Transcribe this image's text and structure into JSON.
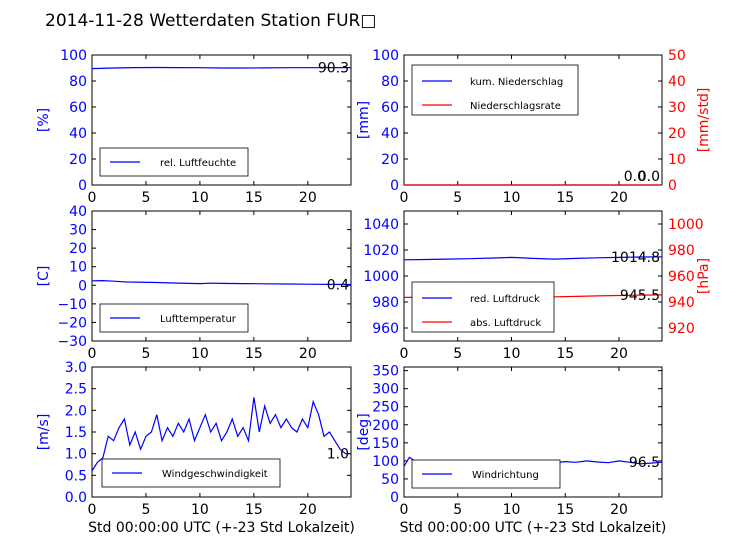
{
  "title": "2014-11-28 Wetterdaten Station FUR□",
  "colors": {
    "blue": "#0000ff",
    "red": "#ff0000",
    "black": "#000000"
  },
  "chart_data": [
    {
      "id": "humidity",
      "type": "line",
      "xlim": [
        0,
        24
      ],
      "xticks": [
        "0",
        "5",
        "10",
        "15",
        "20"
      ],
      "ylim": [
        0,
        100
      ],
      "yticks": [
        "0",
        "20",
        "40",
        "60",
        "80",
        "100"
      ],
      "ylabel": "[%]",
      "xlabel": "",
      "legend": [
        "rel. Luftfeuchte"
      ],
      "legend_position": "lower-left",
      "last_value_label": "90.3",
      "series": [
        {
          "name": "rel. Luftfeuchte",
          "color": "#0000ff",
          "x": [
            0,
            2,
            4,
            6,
            8,
            10,
            12,
            14,
            16,
            18,
            20,
            22,
            24
          ],
          "y": [
            89.5,
            90.0,
            90.3,
            90.4,
            90.3,
            90.2,
            90.0,
            90.0,
            90.1,
            90.2,
            90.2,
            90.3,
            90.3
          ]
        }
      ]
    },
    {
      "id": "precipitation",
      "type": "line",
      "xlim": [
        0,
        24
      ],
      "xticks": [
        "0",
        "5",
        "10",
        "15",
        "20"
      ],
      "ylim": [
        0,
        100
      ],
      "yticks": [
        "0",
        "20",
        "40",
        "60",
        "80",
        "100"
      ],
      "ylabel": "[mm]",
      "y2lim": [
        0,
        50
      ],
      "y2ticks": [
        "0",
        "10",
        "20",
        "30",
        "40",
        "50"
      ],
      "y2label": "[mm/std]",
      "xlabel": "",
      "legend": [
        "kum. Niederschlag",
        "Niederschlagsrate"
      ],
      "legend_position": "upper-left",
      "last_value_label": "0.0",
      "last_value_label_2": "0.0",
      "series": [
        {
          "name": "kum. Niederschlag",
          "color": "#0000ff",
          "x": [
            0,
            24
          ],
          "y": [
            0,
            0
          ]
        },
        {
          "name": "Niederschlagsrate",
          "color": "#ff0000",
          "x": [
            0,
            24
          ],
          "y": [
            0,
            0
          ]
        }
      ]
    },
    {
      "id": "temperature",
      "type": "line",
      "xlim": [
        0,
        24
      ],
      "xticks": [
        "0",
        "5",
        "10",
        "15",
        "20"
      ],
      "ylim": [
        -30,
        40
      ],
      "yticks": [
        "−30",
        "−20",
        "−10",
        "0",
        "10",
        "20",
        "30",
        "40"
      ],
      "ylabel": "[C]",
      "xlabel": "",
      "legend": [
        "Lufttemperatur"
      ],
      "legend_position": "lower-left",
      "last_value_label": "0.4",
      "series": [
        {
          "name": "Lufttemperatur",
          "color": "#0000ff",
          "x": [
            0,
            1,
            2,
            3,
            4,
            6,
            8,
            10,
            11,
            12,
            14,
            16,
            18,
            20,
            22,
            24
          ],
          "y": [
            2.4,
            2.5,
            2.2,
            1.8,
            1.7,
            1.5,
            1.2,
            0.9,
            1.1,
            1.0,
            0.9,
            0.8,
            0.7,
            0.6,
            0.5,
            0.4
          ]
        }
      ]
    },
    {
      "id": "pressure",
      "type": "line",
      "xlim": [
        0,
        24
      ],
      "xticks": [
        "0",
        "5",
        "10",
        "15",
        "20"
      ],
      "ylim": [
        950,
        1050
      ],
      "yticks": [
        "960",
        "980",
        "1000",
        "1020",
        "1040"
      ],
      "ylabel": "",
      "y2lim": [
        910,
        1010
      ],
      "y2ticks": [
        "920",
        "940",
        "960",
        "980",
        "1000"
      ],
      "y2label": "[hPa]",
      "xlabel": "",
      "legend": [
        "red. Luftdruck",
        "abs. Luftdruck"
      ],
      "legend_position": "lower-left",
      "last_value_label": "1014.8",
      "last_value_label_2": "945.5",
      "series": [
        {
          "name": "red. Luftdruck",
          "color": "#0000ff",
          "axis": "left",
          "x": [
            0,
            2,
            4,
            6,
            8,
            10,
            12,
            14,
            16,
            18,
            20,
            22,
            24
          ],
          "y": [
            1012.5,
            1012.7,
            1013.0,
            1013.3,
            1013.8,
            1014.3,
            1013.5,
            1013.0,
            1013.5,
            1014.0,
            1014.3,
            1014.6,
            1014.8
          ]
        },
        {
          "name": "abs. Luftdruck",
          "color": "#ff0000",
          "axis": "right",
          "x": [
            0,
            2,
            4,
            6,
            8,
            10,
            12,
            14,
            16,
            18,
            20,
            22,
            24
          ],
          "y": [
            943.5,
            943.6,
            943.8,
            944.0,
            944.3,
            944.7,
            944.4,
            944.0,
            944.3,
            944.7,
            945.0,
            945.3,
            945.5
          ]
        }
      ]
    },
    {
      "id": "windspeed",
      "type": "line",
      "xlim": [
        0,
        24
      ],
      "xticks": [
        "0",
        "5",
        "10",
        "15",
        "20"
      ],
      "ylim": [
        0,
        3
      ],
      "yticks": [
        "0.0",
        "0.5",
        "1.0",
        "1.5",
        "2.0",
        "2.5",
        "3.0"
      ],
      "ylabel": "[m/s]",
      "xlabel": "Std 00:00:00 UTC (+-23 Std Lokalzeit)",
      "legend": [
        "Windgeschwindigkeit"
      ],
      "legend_position": "lower-center",
      "last_value_label": "1.0",
      "series": [
        {
          "name": "Windgeschwindigkeit",
          "color": "#0000ff",
          "x": [
            0,
            0.5,
            1,
            1.5,
            2,
            2.5,
            3,
            3.5,
            4,
            4.5,
            5,
            5.5,
            6,
            6.5,
            7,
            7.5,
            8,
            8.5,
            9,
            9.5,
            10,
            10.5,
            11,
            11.5,
            12,
            12.5,
            13,
            13.5,
            14,
            14.5,
            15,
            15.5,
            16,
            16.5,
            17,
            17.5,
            18,
            18.5,
            19,
            19.5,
            20,
            20.5,
            21,
            21.5,
            22,
            22.5,
            23,
            23.5,
            24
          ],
          "y": [
            0.6,
            0.8,
            0.9,
            1.4,
            1.3,
            1.6,
            1.8,
            1.2,
            1.5,
            1.1,
            1.4,
            1.5,
            1.9,
            1.3,
            1.6,
            1.4,
            1.7,
            1.5,
            1.8,
            1.3,
            1.6,
            1.9,
            1.5,
            1.7,
            1.3,
            1.5,
            1.8,
            1.4,
            1.6,
            1.3,
            2.3,
            1.5,
            2.1,
            1.7,
            1.9,
            1.6,
            1.8,
            1.6,
            1.5,
            1.8,
            1.6,
            2.2,
            1.9,
            1.4,
            1.5,
            1.3,
            1.1,
            1.0,
            1.0
          ]
        }
      ]
    },
    {
      "id": "winddirection",
      "type": "line",
      "xlim": [
        0,
        24
      ],
      "xticks": [
        "0",
        "5",
        "10",
        "15",
        "20"
      ],
      "ylim": [
        0,
        360
      ],
      "yticks": [
        "0",
        "50",
        "100",
        "150",
        "200",
        "250",
        "300",
        "350"
      ],
      "ylabel": "[deg]",
      "xlabel": "Std 00:00:00 UTC (+-23 Std Lokalzeit)",
      "legend": [
        "Windrichtung"
      ],
      "legend_position": "lower-left",
      "last_value_label": "96.5",
      "series": [
        {
          "name": "Windrichtung",
          "color": "#0000ff",
          "x": [
            0,
            0.5,
            1,
            2,
            3,
            4,
            5,
            6,
            7,
            8,
            9,
            10,
            11,
            12,
            13,
            14,
            15,
            16,
            17,
            18,
            19,
            20,
            21,
            22,
            23,
            24
          ],
          "y": [
            85,
            110,
            100,
            95,
            90,
            95,
            100,
            90,
            95,
            100,
            92,
            96,
            90,
            94,
            85,
            95,
            98,
            96,
            100,
            97,
            95,
            100,
            96,
            92,
            94,
            96.5
          ]
        }
      ]
    }
  ]
}
